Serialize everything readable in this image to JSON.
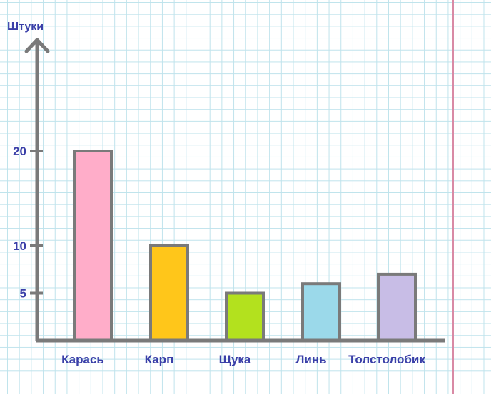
{
  "chart_data": {
    "type": "bar",
    "ylabel": "Штуки",
    "categories": [
      "Карась",
      "Карп",
      "Щука",
      "Линь",
      "Толстолобик"
    ],
    "values": [
      20,
      10,
      5,
      6,
      7
    ],
    "colors": [
      "#ffadc9",
      "#ffc61a",
      "#b3e11e",
      "#9bd9ea",
      "#c8bde6"
    ],
    "yticks": [
      5,
      10,
      20
    ],
    "ylim": [
      0,
      20
    ],
    "grid": true,
    "axis_color": "#7a7a7a",
    "label_color": "#3a3fa8",
    "margin_line_color": "#d98aa5"
  }
}
